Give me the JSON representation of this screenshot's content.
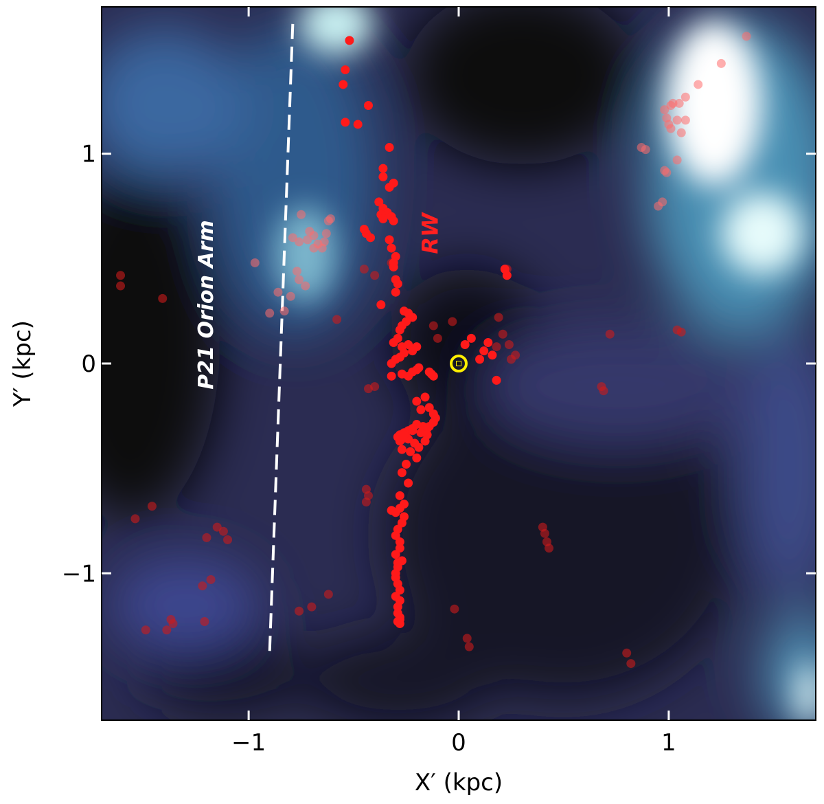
{
  "chart_data": {
    "type": "scatter",
    "title": "",
    "xlabel": "X′ (kpc)",
    "ylabel": "Y′ (kpc)",
    "xlim": [
      -1.7,
      1.7
    ],
    "ylim": [
      -1.7,
      1.7
    ],
    "xticks": [
      -1,
      0,
      1
    ],
    "yticks": [
      -1,
      0,
      1
    ],
    "xtick_labels": [
      "−1",
      "0",
      "1"
    ],
    "ytick_labels": [
      "−1",
      "0",
      "1"
    ],
    "grid": false,
    "background": "density map (dark navy to white)",
    "annotations": [
      {
        "text": "P21 Orion Arm",
        "color": "#ffffff",
        "x": -1.17,
        "y": 0.28,
        "rotation": -90
      },
      {
        "text": "RW",
        "color": "#ff2020",
        "x": -0.1,
        "y": 0.62,
        "rotation": -90
      }
    ],
    "lines": [
      {
        "name": "P21 Orion Arm",
        "style": "dashed",
        "color": "#ffffff",
        "x": [
          -0.9,
          -0.79
        ],
        "y": [
          -1.37,
          1.62
        ]
      }
    ],
    "sun_marker": {
      "x": 0.0,
      "y": 0.0,
      "symbol": "⊙",
      "color": "#ffee00"
    },
    "series": [
      {
        "name": "RW",
        "color": "#ff1a1a",
        "opacity": 1.0,
        "x": [
          -0.52,
          -0.54,
          -0.55,
          -0.43,
          -0.54,
          -0.48,
          -0.33,
          -0.36,
          -0.36,
          -0.31,
          -0.33,
          -0.38,
          -0.36,
          -0.34,
          -0.32,
          -0.37,
          -0.36,
          -0.31,
          -0.45,
          -0.44,
          -0.42,
          -0.33,
          -0.32,
          -0.3,
          -0.31,
          -0.31,
          -0.3,
          -0.29,
          -0.37,
          -0.3,
          -0.26,
          -0.24,
          -0.22,
          -0.25,
          -0.27,
          -0.28,
          -0.29,
          -0.31,
          -0.27,
          -0.24,
          -0.2,
          -0.22,
          -0.26,
          -0.28,
          -0.3,
          -0.32,
          -0.32,
          -0.27,
          -0.24,
          -0.22,
          -0.2,
          -0.19,
          -0.14,
          -0.12,
          -0.13,
          -0.16,
          -0.2,
          -0.18,
          -0.14,
          -0.12,
          -0.11,
          -0.12,
          -0.14,
          -0.15,
          -0.17,
          -0.2,
          -0.22,
          -0.24,
          -0.26,
          -0.28,
          -0.29,
          -0.27,
          -0.24,
          -0.21,
          -0.19,
          -0.16,
          -0.15,
          -0.18,
          -0.22,
          -0.26,
          -0.28,
          -0.23,
          -0.2,
          -0.27,
          -0.25,
          -0.27,
          -0.24,
          -0.28,
          -0.26,
          -0.32,
          -0.3,
          -0.28,
          -0.26,
          -0.27,
          -0.29,
          -0.3,
          -0.28,
          -0.3,
          -0.27,
          -0.29,
          -0.3,
          -0.29,
          -0.28,
          -0.3,
          -0.28,
          -0.29,
          -0.29,
          -0.28,
          -0.29,
          -0.28,
          -0.28,
          -0.3,
          -0.29,
          -0.28,
          0.03,
          0.12,
          0.16,
          0.18,
          0.1,
          0.14,
          0.06,
          0.23,
          0.22
        ],
        "y": [
          1.54,
          1.4,
          1.33,
          1.23,
          1.15,
          1.14,
          1.03,
          0.93,
          0.89,
          0.86,
          0.84,
          0.77,
          0.74,
          0.72,
          0.7,
          0.71,
          0.69,
          0.68,
          0.64,
          0.62,
          0.6,
          0.59,
          0.55,
          0.51,
          0.48,
          0.46,
          0.4,
          0.38,
          0.28,
          0.34,
          0.25,
          0.24,
          0.22,
          0.2,
          0.18,
          0.16,
          0.12,
          0.1,
          0.08,
          0.09,
          0.08,
          0.06,
          0.05,
          0.03,
          0.02,
          0.0,
          -0.06,
          -0.05,
          -0.06,
          -0.04,
          -0.03,
          -0.02,
          -0.04,
          -0.06,
          -0.05,
          -0.16,
          -0.18,
          -0.22,
          -0.21,
          -0.24,
          -0.26,
          -0.28,
          -0.3,
          -0.31,
          -0.3,
          -0.29,
          -0.31,
          -0.32,
          -0.33,
          -0.34,
          -0.35,
          -0.36,
          -0.36,
          -0.38,
          -0.4,
          -0.37,
          -0.34,
          -0.33,
          -0.32,
          -0.34,
          -0.37,
          -0.42,
          -0.45,
          -0.41,
          -0.48,
          -0.52,
          -0.57,
          -0.63,
          -0.67,
          -0.7,
          -0.71,
          -0.69,
          -0.73,
          -0.76,
          -0.79,
          -0.82,
          -0.88,
          -0.91,
          -0.94,
          -0.97,
          -1.02,
          -1.05,
          -1.08,
          -1.11,
          -1.13,
          -1.16,
          -1.19,
          -1.21,
          -1.23,
          -1.24,
          -1.22,
          -1.0,
          -0.95,
          -0.85,
          0.09,
          0.06,
          0.04,
          -0.08,
          0.02,
          0.1,
          0.12,
          0.42,
          0.45
        ]
      },
      {
        "name": "",
        "color": "#ff6b6b",
        "opacity": 0.55,
        "x": [
          1.37,
          1.25,
          1.14,
          1.08,
          1.05,
          1.02,
          1.01,
          0.98,
          0.99,
          1.04,
          1.0,
          1.08,
          1.01,
          1.06,
          0.87,
          0.89,
          1.04,
          0.98,
          0.99,
          0.97,
          0.95,
          -0.62,
          -0.61,
          -0.75,
          -0.79,
          -0.71,
          -0.69,
          -0.67,
          -0.65,
          -0.64,
          -0.72,
          -0.76,
          -0.69,
          -0.63,
          -0.77,
          -0.76,
          -0.73,
          -0.8,
          -0.83,
          -0.9,
          -0.86,
          -0.97
        ],
        "y": [
          1.56,
          1.43,
          1.33,
          1.27,
          1.24,
          1.24,
          1.23,
          1.21,
          1.17,
          1.16,
          1.14,
          1.16,
          1.12,
          1.1,
          1.03,
          1.02,
          0.97,
          0.92,
          0.91,
          0.77,
          0.75,
          0.68,
          0.69,
          0.71,
          0.6,
          0.63,
          0.61,
          0.57,
          0.55,
          0.58,
          0.59,
          0.58,
          0.55,
          0.62,
          0.44,
          0.4,
          0.37,
          0.32,
          0.25,
          0.24,
          0.34,
          0.48
        ]
      },
      {
        "name": "",
        "color": "#cc1a1a",
        "opacity": 0.6,
        "x": [
          -1.61,
          -1.61,
          -1.41,
          -1.46,
          -1.54,
          -1.12,
          -1.2,
          -1.15,
          -1.1,
          -1.22,
          -1.18,
          -1.36,
          -1.39,
          -1.37,
          -1.49,
          -1.21,
          -0.76,
          -0.7,
          -0.62,
          -0.44,
          -0.43,
          -0.44,
          -0.4,
          -0.43,
          0.4,
          0.41,
          0.42,
          0.43,
          0.69,
          0.68,
          0.72,
          1.06,
          1.04,
          0.8,
          0.82,
          -0.02,
          0.04,
          0.05,
          -0.58,
          -0.4,
          -0.45,
          -0.32,
          -0.12,
          -0.1,
          -0.03,
          0.21,
          0.18,
          0.24,
          0.27,
          0.25,
          0.23,
          0.19
        ],
        "y": [
          0.42,
          0.37,
          0.31,
          -0.68,
          -0.74,
          -0.8,
          -0.83,
          -0.78,
          -0.84,
          -1.06,
          -1.03,
          -1.24,
          -1.27,
          -1.22,
          -1.27,
          -1.23,
          -1.18,
          -1.16,
          -1.1,
          -0.6,
          -0.63,
          -0.66,
          -0.11,
          -0.12,
          -0.78,
          -0.81,
          -0.85,
          -0.88,
          -0.13,
          -0.11,
          0.14,
          0.15,
          0.16,
          -1.38,
          -1.43,
          -1.17,
          -1.31,
          -1.35,
          0.21,
          0.42,
          0.45,
          0.48,
          0.18,
          0.12,
          0.2,
          0.14,
          0.08,
          0.09,
          0.04,
          0.02,
          0.45,
          0.22
        ]
      }
    ]
  }
}
